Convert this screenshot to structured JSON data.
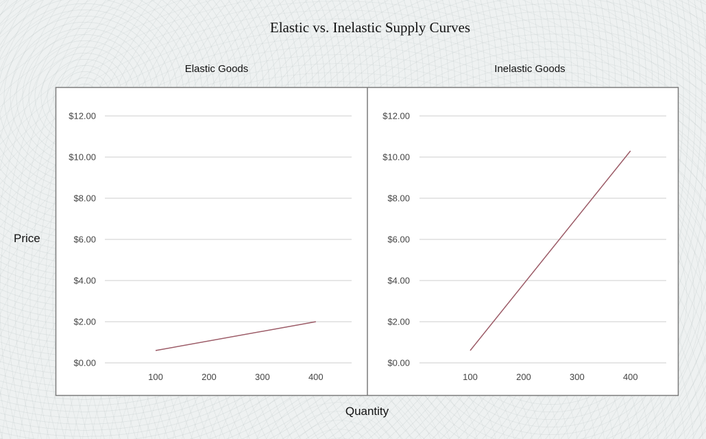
{
  "title": "Elastic vs. Inelastic Supply Curves",
  "ylabel": "Price",
  "xlabel": "Quantity",
  "colors": {
    "line": "#9b5a66",
    "grid": "#cccccc",
    "frame": "#7a7a7a",
    "panel_bg": "#ffffff"
  },
  "chart_data": [
    {
      "type": "line",
      "title": "Elastic Goods",
      "x": [
        100,
        400
      ],
      "y": [
        0.6,
        2.0
      ],
      "xticks": [
        "100",
        "200",
        "300",
        "400"
      ],
      "yticks": [
        "$0.00",
        "$2.00",
        "$4.00",
        "$6.00",
        "$8.00",
        "$10.00",
        "$12.00"
      ],
      "ylim": [
        0,
        12
      ],
      "xlim": [
        5,
        467
      ],
      "grid": true
    },
    {
      "type": "line",
      "title": "Inelastic Goods",
      "x": [
        100,
        400
      ],
      "y": [
        0.6,
        10.3
      ],
      "xticks": [
        "100",
        "200",
        "300",
        "400"
      ],
      "yticks": [
        "$0.00",
        "$2.00",
        "$4.00",
        "$6.00",
        "$8.00",
        "$10.00",
        "$12.00"
      ],
      "ylim": [
        0,
        12
      ],
      "xlim": [
        5,
        467
      ],
      "grid": true
    }
  ]
}
